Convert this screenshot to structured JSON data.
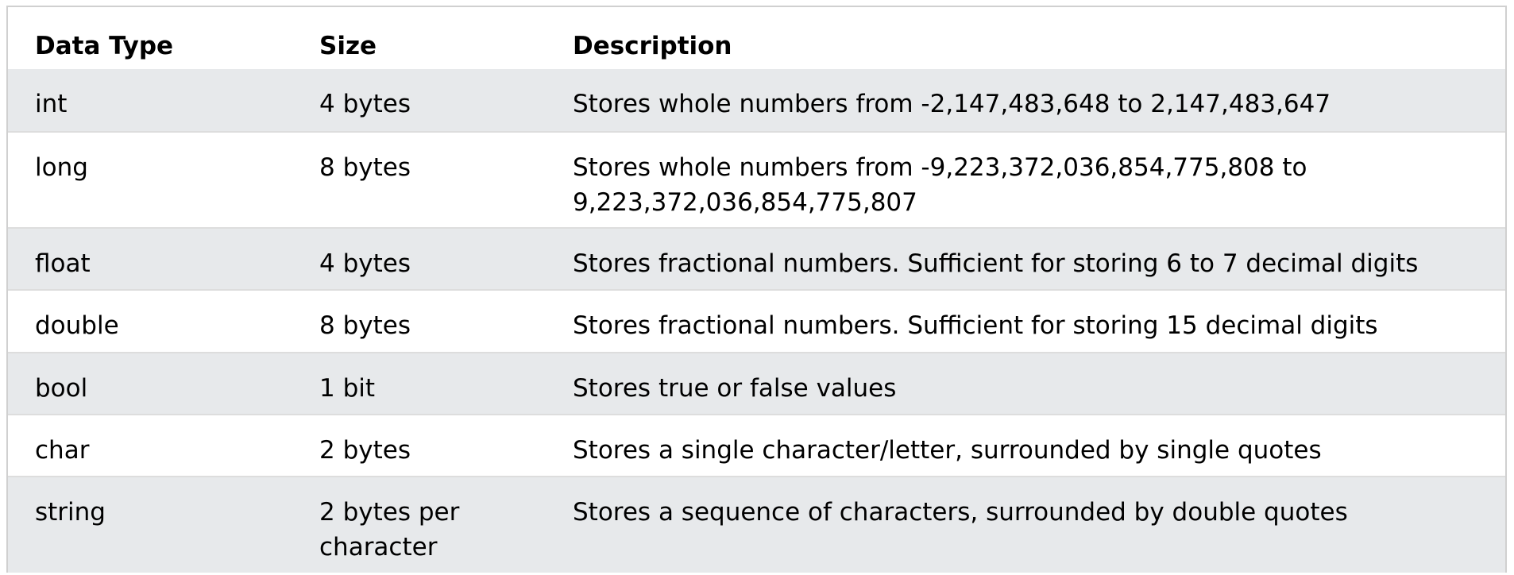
{
  "table": {
    "headers": [
      "Data Type",
      "Size",
      "Description"
    ],
    "rows": [
      [
        "int",
        "4 bytes",
        "Stores whole numbers from -2,147,483,648 to 2,147,483,647"
      ],
      [
        "long",
        "8 bytes",
        "Stores whole numbers from -9,223,372,036,854,775,808 to 9,223,372,036,854,775,807"
      ],
      [
        "float",
        "4 bytes",
        "Stores fractional numbers. Sufficient for storing 6 to 7 decimal digits"
      ],
      [
        "double",
        "8 bytes",
        "Stores fractional numbers. Sufficient for storing 15 decimal digits"
      ],
      [
        "bool",
        "1 bit",
        "Stores true or false values"
      ],
      [
        "char",
        "2 bytes",
        "Stores a single character/letter, surrounded by single quotes"
      ],
      [
        "string",
        "2 bytes per character",
        "Stores a sequence of characters, surrounded by double quotes"
      ]
    ]
  },
  "colors": {
    "shaded_row": "#e7e9eb",
    "border": "#d0d0d0",
    "text": "#000000"
  }
}
